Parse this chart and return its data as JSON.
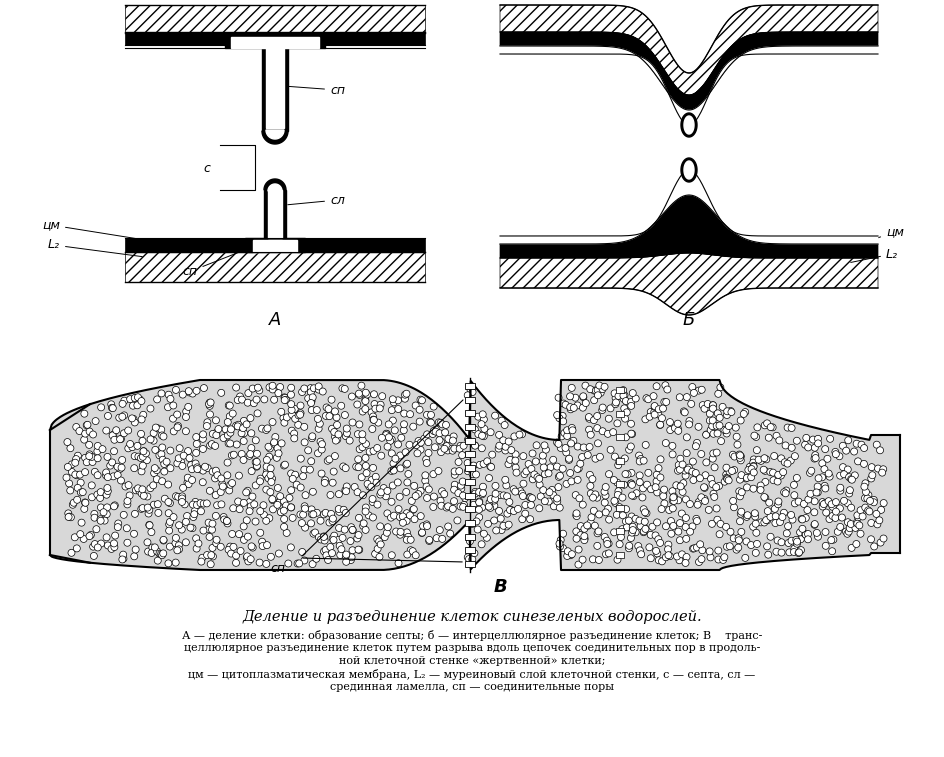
{
  "title": "Деление и разъединение клеток синезеленых водорослей.",
  "caption_line1": "А — деление клетки: образование септы; б — интерцеллюлярное разъединение клеток; В    транс-",
  "caption_line2": "целлюлярное разъединение клеток путем разрыва вдоль цепочек соединительных пор в продоль-",
  "caption_line3": "ной клеточной стенке «жертвенной» клетки;",
  "caption_line4": "цм — цитоплазматическая мембрана, L₂ — муреиновый слой клеточной стенки, с — септа, сл —",
  "caption_line5": "срединная ламелла, сп — соединительные поры",
  "label_A": "А",
  "label_B": "Б",
  "label_V": "В",
  "label_sp_top": "сп",
  "label_c": "с",
  "label_sl": "сл",
  "label_cm_A": "цм",
  "label_L2_A": "L₂",
  "label_sp_bot": "сп",
  "label_cm_B": "цм",
  "label_L2_B": "L₂",
  "label_sp_V": "сп",
  "bg_color": "#ffffff"
}
